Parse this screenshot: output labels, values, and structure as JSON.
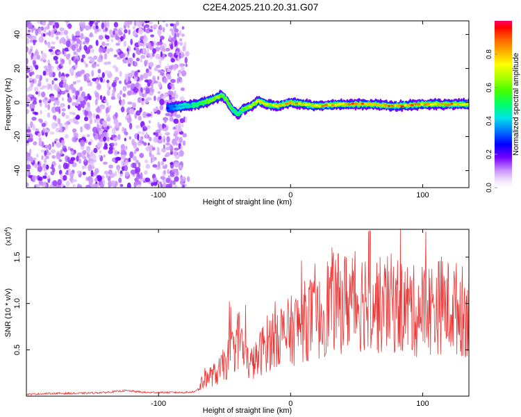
{
  "title": "C2E4.2025.210.20.31.G07",
  "chart_data": [
    {
      "type": "heatmap",
      "title": "C2E4.2025.210.20.31.G07",
      "xlabel": "Height of straight line (km)",
      "ylabel": "Frequency (Hz)",
      "xlim": [
        -200,
        135
      ],
      "ylim": [
        -50,
        48
      ],
      "xticks": [
        -100,
        0,
        100
      ],
      "xtick_labels": [
        "-100",
        "0",
        "100"
      ],
      "yticks": [
        -40,
        -20,
        0,
        20,
        40
      ],
      "ytick_labels": [
        "-40",
        "-20",
        "0",
        "20",
        "40"
      ],
      "noise_region_x": [
        -200,
        -77
      ],
      "trace": {
        "x": [
          -93,
          -85,
          -75,
          -65,
          -58,
          -52,
          -48,
          -44,
          -40,
          -36,
          -30,
          -24,
          -18,
          -10,
          0,
          10,
          20,
          40,
          60,
          80,
          100,
          120,
          135
        ],
        "y": [
          -3,
          -2.5,
          -1.5,
          0,
          2,
          4.5,
          1,
          -4,
          -7,
          -4,
          -2,
          1,
          -1,
          -2,
          0,
          -1,
          -2,
          -1,
          -1,
          -2,
          -1,
          -1,
          -1
        ],
        "amplitude": [
          0.3,
          0.4,
          0.5,
          0.6,
          0.65,
          0.7,
          0.6,
          0.55,
          0.5,
          0.6,
          0.75,
          0.85,
          0.8,
          0.85,
          0.9,
          0.92,
          0.9,
          0.93,
          0.95,
          0.94,
          0.95,
          0.96,
          0.95
        ]
      },
      "colorbar": {
        "label": "Normalized spectral amplitude",
        "range": [
          0,
          1
        ],
        "ticks": [
          0.0,
          0.2,
          0.4,
          0.6,
          0.8
        ],
        "tick_labels": [
          "0.0",
          "0.2",
          "0.4",
          "0.6",
          "0.8"
        ]
      },
      "grid": false
    },
    {
      "type": "line",
      "xlabel": "Height of straight line (km)",
      "ylabel": "SNR (10 * v/v)",
      "y_multiplier": "(x10",
      "y_multiplier_exp": "4",
      "y_multiplier_close": ")",
      "xlim": [
        -200,
        135
      ],
      "ylim": [
        0,
        1.8
      ],
      "xticks": [
        -100,
        0,
        100
      ],
      "xtick_labels": [
        "-100",
        "0",
        "100"
      ],
      "yticks": [
        0.5,
        1.0,
        1.5
      ],
      "ytick_labels": [
        "0.5",
        "1.0",
        "1.5"
      ],
      "series": [
        {
          "color": "#ee3333",
          "x": [
            -200,
            -180,
            -160,
            -140,
            -125,
            -110,
            -95,
            -80,
            -72,
            -68,
            -65,
            -60,
            -55,
            -50,
            -45,
            -42,
            -38,
            -35,
            -30,
            -25,
            -20,
            -15,
            -10,
            -5,
            0,
            5,
            10,
            15,
            20,
            25,
            30,
            35,
            40,
            45,
            50,
            55,
            58,
            60,
            65,
            70,
            75,
            80,
            85,
            90,
            95,
            100,
            105,
            110,
            115,
            120,
            125,
            130,
            135
          ],
          "y": [
            0.02,
            0.03,
            0.03,
            0.04,
            0.06,
            0.04,
            0.04,
            0.04,
            0.05,
            0.12,
            0.2,
            0.22,
            0.25,
            0.35,
            0.45,
            0.55,
            0.65,
            0.4,
            0.35,
            0.4,
            0.55,
            0.6,
            0.7,
            0.65,
            0.7,
            0.75,
            0.8,
            0.85,
            0.8,
            0.9,
            1.05,
            1.0,
            1.0,
            1.05,
            1.0,
            1.05,
            1.1,
            1.15,
            1.0,
            0.95,
            1.0,
            1.0,
            0.95,
            0.95,
            0.9,
            0.95,
            0.95,
            0.95,
            1.0,
            0.95,
            0.95,
            0.92,
            0.9
          ]
        }
      ],
      "grid": false
    }
  ]
}
